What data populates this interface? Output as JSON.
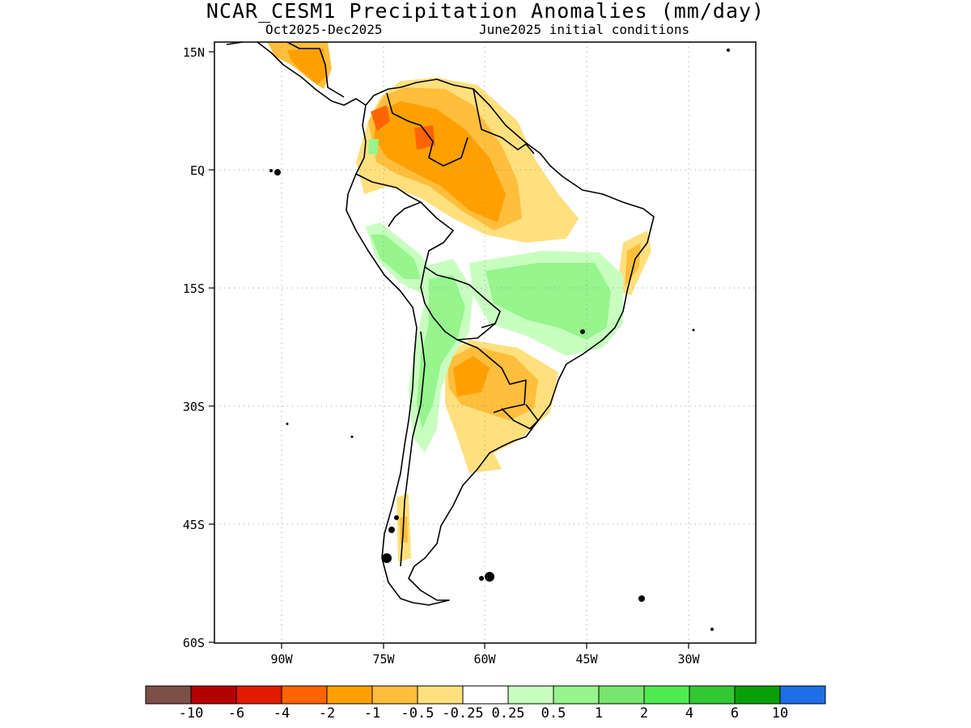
{
  "title": "NCAR_CESM1 Precipitation Anomalies (mm/day)",
  "subtitle_left": "Oct2025-Dec2025",
  "subtitle_right": "June2025 initial conditions",
  "lat_ticks": [
    "15N",
    "EQ",
    "15S",
    "30S",
    "45S",
    "60S"
  ],
  "lon_ticks": [
    "90W",
    "75W",
    "60W",
    "45W",
    "30W"
  ],
  "colorbar": {
    "labels": [
      "-10",
      "-6",
      "-4",
      "-2",
      "-1",
      "-0.5",
      "-0.25",
      "0.25",
      "0.5",
      "1",
      "2",
      "4",
      "6",
      "10"
    ],
    "colors": [
      "#7b5147",
      "#b50000",
      "#e01b00",
      "#ff6400",
      "#ffa000",
      "#ffbe3c",
      "#ffe07d",
      "#ffffff",
      "#c8ffc0",
      "#96f58c",
      "#78e66e",
      "#50eb50",
      "#32c832",
      "#0aa00a",
      "#1e6ee6"
    ]
  },
  "map": {
    "projection": "lat-lon",
    "lon_range": [
      -103,
      -23
    ],
    "lat_range": [
      -60,
      15
    ],
    "grid": true
  }
}
